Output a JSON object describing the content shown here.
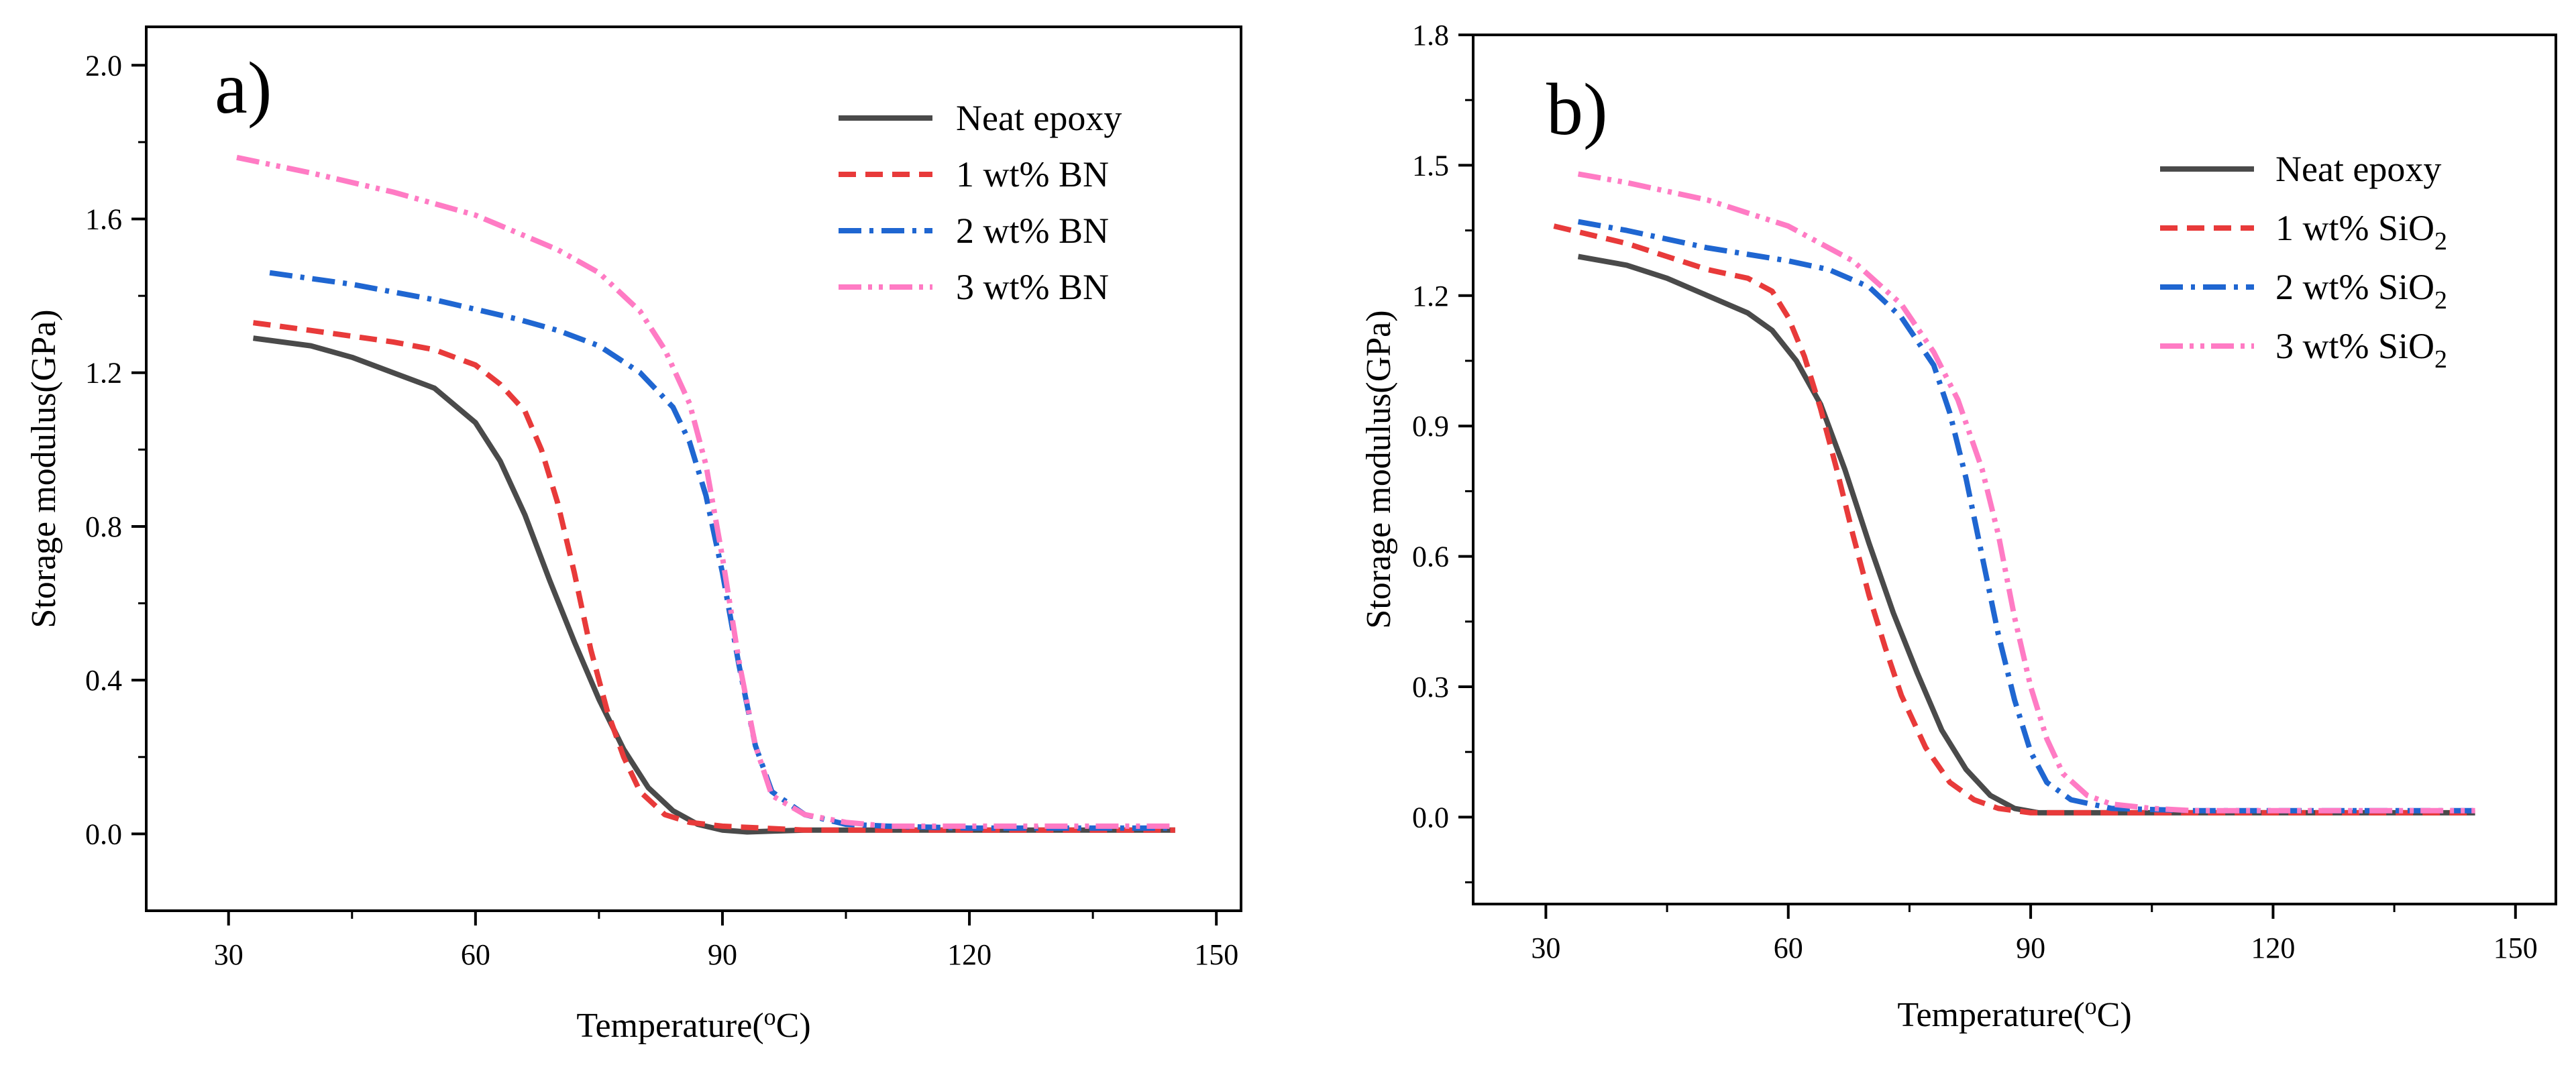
{
  "chart_data": [
    {
      "type": "line",
      "panel_label": "a)",
      "xlabel": {
        "main": "Temperature(",
        "sup": "o",
        "unit": "C)"
      },
      "ylabel": "Storage modulus(GPa)",
      "xlim": [
        20,
        153
      ],
      "ylim": [
        -0.2,
        2.1
      ],
      "xticks": [
        30,
        60,
        90,
        120,
        150
      ],
      "yticks": [
        0.0,
        0.4,
        0.8,
        1.2,
        1.6,
        2.0
      ],
      "ytick_labels": [
        "0.0",
        "0.4",
        "0.8",
        "1.2",
        "1.6",
        "2.0"
      ],
      "legend_position": "top-right",
      "series": [
        {
          "name": "Neat epoxy",
          "base": "Neat epoxy",
          "sub": "",
          "color": "#4a4a4a",
          "dash": "solid",
          "x": [
            33,
            40,
            45,
            50,
            55,
            60,
            63,
            66,
            69,
            72,
            75,
            78,
            81,
            84,
            87,
            90,
            93,
            100,
            120,
            145
          ],
          "y": [
            1.29,
            1.27,
            1.24,
            1.2,
            1.16,
            1.07,
            0.97,
            0.83,
            0.66,
            0.5,
            0.35,
            0.22,
            0.12,
            0.06,
            0.025,
            0.01,
            0.005,
            0.01,
            0.01,
            0.01
          ]
        },
        {
          "name": "1 wt% BN",
          "base": "1 wt% BN",
          "sub": "",
          "color": "#e83a3a",
          "dash": "dashed",
          "x": [
            33,
            40,
            50,
            55,
            60,
            63,
            66,
            68,
            70,
            72,
            74,
            76,
            78,
            80,
            83,
            86,
            90,
            100,
            120,
            145
          ],
          "y": [
            1.33,
            1.31,
            1.28,
            1.26,
            1.22,
            1.17,
            1.1,
            1.0,
            0.86,
            0.68,
            0.48,
            0.32,
            0.2,
            0.11,
            0.05,
            0.03,
            0.02,
            0.01,
            0.01,
            0.01
          ]
        },
        {
          "name": "2 wt% BN",
          "base": "2 wt% BN",
          "sub": "",
          "color": "#1f66d1",
          "dash": "dashdot",
          "x": [
            35,
            45,
            55,
            65,
            70,
            75,
            80,
            84,
            86,
            88,
            90,
            92,
            94,
            96,
            100,
            105,
            110,
            120,
            145
          ],
          "y": [
            1.46,
            1.43,
            1.39,
            1.34,
            1.31,
            1.27,
            1.2,
            1.11,
            1.02,
            0.88,
            0.68,
            0.44,
            0.23,
            0.11,
            0.05,
            0.025,
            0.02,
            0.015,
            0.015
          ]
        },
        {
          "name": "3 wt% BN",
          "base": "3 wt% BN",
          "sub": "",
          "color": "#ff7bc4",
          "dash": "dashdotdot",
          "x": [
            31,
            40,
            50,
            60,
            70,
            75,
            80,
            83,
            86,
            88,
            90,
            92,
            94,
            96,
            100,
            105,
            110,
            120,
            145
          ],
          "y": [
            1.76,
            1.72,
            1.67,
            1.61,
            1.52,
            1.46,
            1.36,
            1.26,
            1.12,
            0.96,
            0.72,
            0.45,
            0.23,
            0.1,
            0.05,
            0.03,
            0.02,
            0.02,
            0.02
          ]
        }
      ]
    },
    {
      "type": "line",
      "panel_label": "b)",
      "xlabel": {
        "main": "Temperature(",
        "sup": "o",
        "unit": "C)"
      },
      "ylabel": "Storage modulus(GPa)",
      "xlim": [
        21,
        155
      ],
      "ylim": [
        -0.2,
        1.8
      ],
      "xticks": [
        30,
        60,
        90,
        120,
        150
      ],
      "yticks": [
        0.0,
        0.3,
        0.6,
        0.9,
        1.2,
        1.5,
        1.8
      ],
      "ytick_labels": [
        "0.0",
        "0.3",
        "0.6",
        "0.9",
        "1.2",
        "1.5",
        "1.8"
      ],
      "legend_position": "top-right",
      "series": [
        {
          "name": "Neat epoxy",
          "base": "Neat epoxy",
          "sub": "",
          "color": "#4a4a4a",
          "dash": "solid",
          "x": [
            34,
            40,
            45,
            50,
            55,
            58,
            61,
            64,
            67,
            70,
            73,
            76,
            79,
            82,
            85,
            88,
            91,
            100,
            120,
            145
          ],
          "y": [
            1.29,
            1.27,
            1.24,
            1.2,
            1.16,
            1.12,
            1.05,
            0.95,
            0.8,
            0.63,
            0.47,
            0.33,
            0.2,
            0.11,
            0.05,
            0.02,
            0.01,
            0.01,
            0.01,
            0.01
          ]
        },
        {
          "name": "1 wt% SiO2",
          "base": "1 wt% SiO",
          "sub": "2",
          "color": "#e83a3a",
          "dash": "dashed",
          "x": [
            31,
            40,
            45,
            50,
            55,
            58,
            60,
            62,
            64,
            66,
            68,
            70,
            72,
            74,
            77,
            80,
            83,
            86,
            90,
            100,
            120,
            145
          ],
          "y": [
            1.36,
            1.32,
            1.29,
            1.26,
            1.24,
            1.21,
            1.15,
            1.06,
            0.94,
            0.8,
            0.65,
            0.51,
            0.39,
            0.28,
            0.16,
            0.08,
            0.04,
            0.02,
            0.01,
            0.01,
            0.01,
            0.01
          ]
        },
        {
          "name": "2 wt% SiO2",
          "base": "2 wt% SiO",
          "sub": "2",
          "color": "#1f66d1",
          "dash": "dashdot",
          "x": [
            34,
            40,
            50,
            60,
            65,
            70,
            74,
            78,
            80,
            82,
            84,
            86,
            88,
            90,
            92,
            95,
            100,
            110,
            120,
            145
          ],
          "y": [
            1.37,
            1.35,
            1.31,
            1.28,
            1.26,
            1.22,
            1.15,
            1.04,
            0.93,
            0.78,
            0.6,
            0.42,
            0.27,
            0.15,
            0.08,
            0.04,
            0.02,
            0.015,
            0.015,
            0.015
          ]
        },
        {
          "name": "3 wt% SiO2",
          "base": "3 wt% SiO",
          "sub": "2",
          "color": "#ff7bc4",
          "dash": "dashdotdot",
          "x": [
            34,
            40,
            50,
            60,
            68,
            74,
            78,
            81,
            84,
            86,
            88,
            90,
            92,
            94,
            97,
            100,
            105,
            110,
            120,
            145
          ],
          "y": [
            1.48,
            1.46,
            1.42,
            1.36,
            1.28,
            1.18,
            1.07,
            0.96,
            0.8,
            0.65,
            0.46,
            0.3,
            0.18,
            0.1,
            0.05,
            0.03,
            0.02,
            0.015,
            0.015,
            0.015
          ]
        }
      ]
    }
  ]
}
